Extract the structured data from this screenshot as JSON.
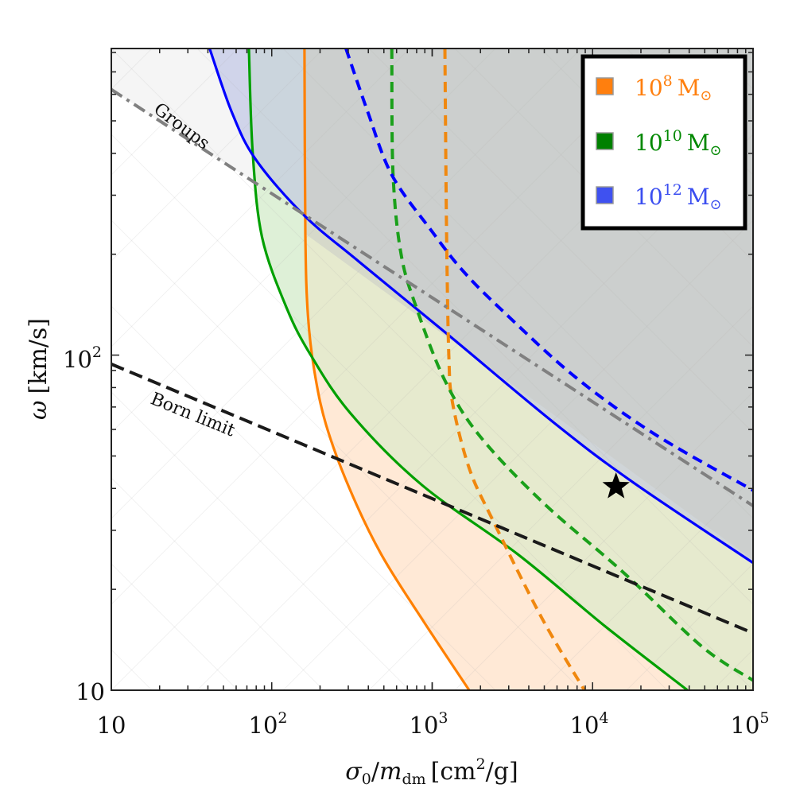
{
  "chart_data": {
    "type": "line",
    "title": "",
    "xlabel": "σ0/m_dm [cm^2/g]",
    "ylabel": "ω [km/s]",
    "xscale": "log",
    "yscale": "log",
    "xlim": [
      10,
      100000
    ],
    "ylim": [
      10,
      822
    ],
    "x_ticks": [
      "10",
      "10^2",
      "10^3",
      "10^4",
      "10^5"
    ],
    "y_ticks": [
      "10",
      "10^2"
    ],
    "grid": false,
    "legend_position": "upper right",
    "legend": [
      {
        "label_base": "10",
        "label_exp": "8",
        "label_unit": "M",
        "color": "#ff7f0e",
        "swatch": "#ff7f0e"
      },
      {
        "label_base": "10",
        "label_exp": "10",
        "label_unit": "M",
        "color": "#008800",
        "swatch": "#008000"
      },
      {
        "label_base": "10",
        "label_exp": "12",
        "label_unit": "M",
        "color": "#3b4ef0",
        "swatch": "#3f51f0"
      }
    ],
    "series": [
      {
        "name": "10^8 Msun (solid)",
        "color": "#ff8000",
        "style": "solid",
        "fill": "#ffe3cc",
        "points": [
          [
            160,
            822
          ],
          [
            162,
            230
          ],
          [
            168,
            132
          ],
          [
            184,
            90
          ],
          [
            218,
            62
          ],
          [
            305,
            40
          ],
          [
            480,
            25.5
          ],
          [
            850,
            16.5
          ],
          [
            1700,
            10
          ]
        ]
      },
      {
        "name": "10^10 Msun (solid)",
        "color": "#00a000",
        "style": "solid",
        "fill": "#cdeccd",
        "points": [
          [
            72,
            822
          ],
          [
            76,
            405
          ],
          [
            87,
            225
          ],
          [
            124,
            138
          ],
          [
            175,
            100
          ],
          [
            310,
            67
          ],
          [
            860,
            41
          ],
          [
            3400,
            25.5
          ],
          [
            12000,
            15.5
          ],
          [
            39000,
            10
          ]
        ]
      },
      {
        "name": "10^12 Msun (solid)",
        "color": "#0000ff",
        "style": "solid",
        "fill": "#d6d6ff",
        "points": [
          [
            41,
            822
          ],
          [
            56,
            535
          ],
          [
            79,
            385
          ],
          [
            158,
            262
          ],
          [
            350,
            190
          ],
          [
            1230,
            116
          ],
          [
            5700,
            63
          ],
          [
            17500,
            42
          ],
          [
            100000,
            24
          ]
        ]
      },
      {
        "name": "10^8 Msun (dashed)",
        "color": "#ff8000",
        "style": "dashed",
        "points": [
          [
            1200,
            822
          ],
          [
            1230,
            230
          ],
          [
            1270,
            100
          ],
          [
            1340,
            72
          ],
          [
            1700,
            46
          ],
          [
            2400,
            32
          ],
          [
            4800,
            16.5
          ],
          [
            8900,
            10
          ]
        ]
      },
      {
        "name": "10^10 Msun (dashed)",
        "color": "#00a000",
        "style": "dashed",
        "points": [
          [
            560,
            822
          ],
          [
            570,
            350
          ],
          [
            640,
            200
          ],
          [
            800,
            138
          ],
          [
            1200,
            84
          ],
          [
            2000,
            57
          ],
          [
            5000,
            36
          ],
          [
            15500,
            22.5
          ],
          [
            48000,
            13.5
          ],
          [
            100000,
            10.7
          ]
        ]
      },
      {
        "name": "10^12 Msun (dashed)",
        "color": "#0000ff",
        "style": "dashed",
        "points": [
          [
            290,
            822
          ],
          [
            395,
            535
          ],
          [
            560,
            345
          ],
          [
            990,
            235
          ],
          [
            1560,
            178
          ],
          [
            2770,
            135
          ],
          [
            7800,
            86
          ],
          [
            24500,
            58
          ],
          [
            100000,
            39.5
          ]
        ]
      },
      {
        "name": "Groups",
        "color": "#808080",
        "style": "dashdot",
        "points": [
          [
            10,
            620
          ],
          [
            100000,
            35.5
          ]
        ]
      },
      {
        "name": "Born limit",
        "color": "#1a1a1a",
        "style": "dashed",
        "points": [
          [
            10,
            94
          ],
          [
            100000,
            14.8
          ]
        ]
      }
    ],
    "markers": [
      {
        "name": "star",
        "x": 14000,
        "y": 40.5,
        "color": "#000000"
      }
    ],
    "annotations": [
      {
        "text": "Groups",
        "x": 21,
        "y": 380,
        "rotation": 37
      },
      {
        "text": "Born limit",
        "x": 25,
        "y": 68,
        "rotation": 22
      }
    ]
  },
  "axes": {
    "x_tick_labels": [
      {
        "base": "10",
        "exp": ""
      },
      {
        "base": "10",
        "exp": "2"
      },
      {
        "base": "10",
        "exp": "3"
      },
      {
        "base": "10",
        "exp": "4"
      },
      {
        "base": "10",
        "exp": "5"
      }
    ],
    "y_tick_labels": [
      {
        "base": "10",
        "exp": ""
      },
      {
        "base": "10",
        "exp": "2"
      }
    ],
    "xlabel_parts": {
      "sigma": "σ",
      "sub0": "0",
      "slash": "/",
      "m": "m",
      "sub_dm": "dm",
      "unit_open": "[cm",
      "unit_exp": "2",
      "unit_close": "/g]"
    },
    "ylabel_parts": {
      "omega": "ω",
      "unit": "[km/s]"
    }
  },
  "legend_labels": {
    "l0_base": "10",
    "l0_exp": "8",
    "l0_unit": "M",
    "l1_base": "10",
    "l1_exp": "10",
    "l1_unit": "M",
    "l2_base": "10",
    "l2_exp": "12",
    "l2_unit": "M",
    "sun": "⊙"
  },
  "annot": {
    "groups": "Groups",
    "born": "Born limit"
  }
}
